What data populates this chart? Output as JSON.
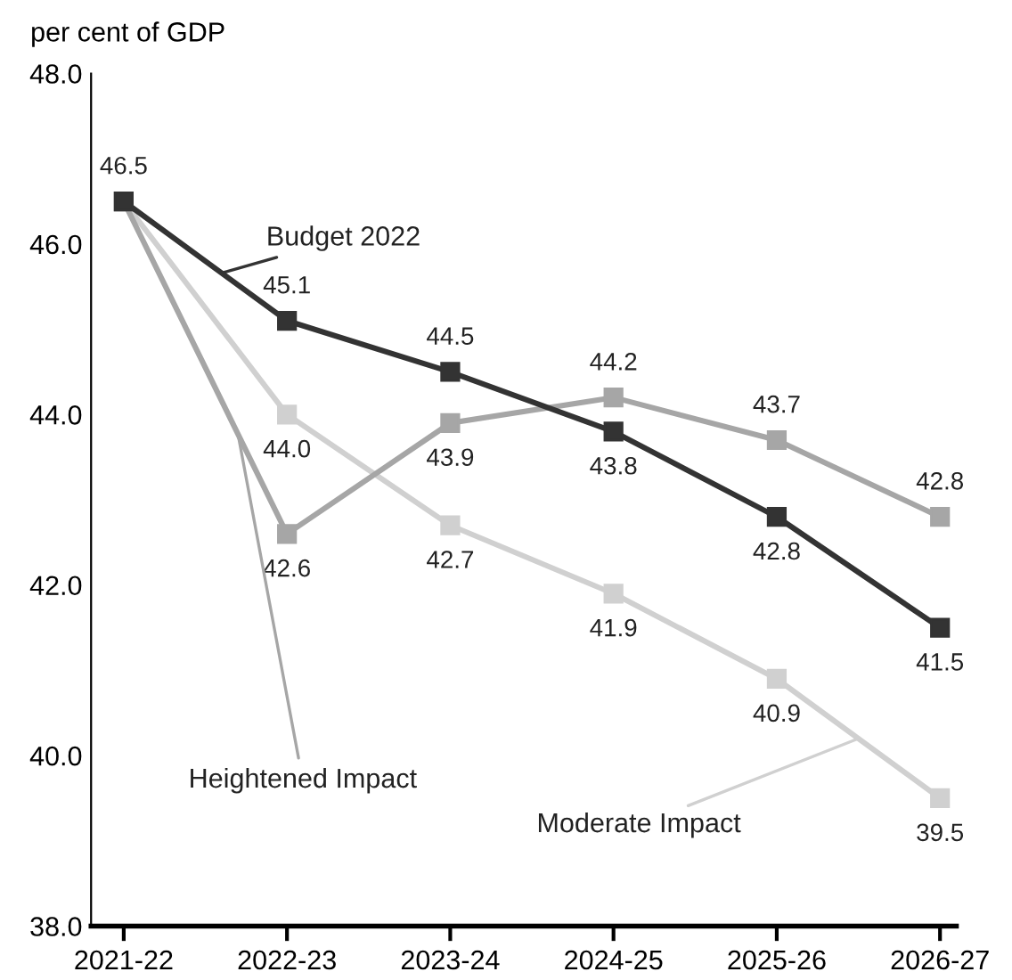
{
  "chart_data": {
    "type": "line",
    "ylabel": "per cent of GDP",
    "categories": [
      "2021-22",
      "2022-23",
      "2023-24",
      "2024-25",
      "2025-26",
      "2026-27"
    ],
    "series": [
      {
        "name": "Budget 2022",
        "color": "#333333",
        "values": [
          46.5,
          45.1,
          44.5,
          43.8,
          42.8,
          41.5
        ],
        "value_labels": [
          "46.5",
          "45.1",
          "44.5",
          "43.8",
          "42.8",
          "41.5"
        ]
      },
      {
        "name": "Heightened Impact",
        "color": "#a6a6a6",
        "values": [
          46.5,
          42.6,
          43.9,
          44.2,
          43.7,
          42.8
        ],
        "value_labels": [
          null,
          "42.6",
          "43.9",
          "44.2",
          "43.7",
          "42.8"
        ]
      },
      {
        "name": "Moderate Impact",
        "color": "#d0d0d0",
        "values": [
          46.5,
          44.0,
          42.7,
          41.9,
          40.9,
          39.5
        ],
        "value_labels": [
          null,
          "44.0",
          "42.7",
          "41.9",
          "40.9",
          "39.5"
        ]
      }
    ],
    "ylim": [
      38,
      48
    ],
    "yticks": [
      {
        "value": 38,
        "label": "38.0"
      },
      {
        "value": 40,
        "label": "40.0"
      },
      {
        "value": 42,
        "label": "42.0"
      },
      {
        "value": 44,
        "label": "44.0"
      },
      {
        "value": 46,
        "label": "46.0"
      },
      {
        "value": 48,
        "label": "48.0"
      }
    ],
    "grid": false,
    "legend": false,
    "marker": "square",
    "line_style": "solid"
  }
}
